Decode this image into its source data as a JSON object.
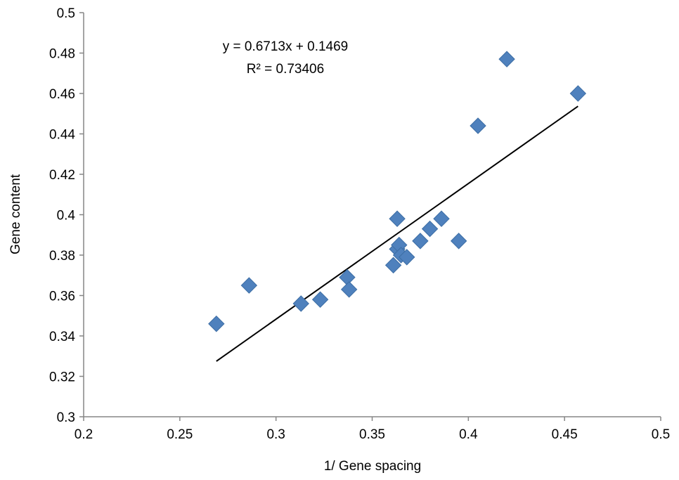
{
  "chart_data": {
    "type": "scatter",
    "xlabel": "1/ Gene spacing",
    "ylabel": "Gene content",
    "xlim": [
      0.2,
      0.5
    ],
    "ylim": [
      0.3,
      0.5
    ],
    "x_ticks": [
      "0.2",
      "0.25",
      "0.3",
      "0.35",
      "0.4",
      "0.45",
      "0.5"
    ],
    "y_ticks": [
      "0.3",
      "0.32",
      "0.34",
      "0.36",
      "0.38",
      "0.4",
      "0.42",
      "0.44",
      "0.46",
      "0.48",
      "0.5"
    ],
    "grid": false,
    "marker_color": "#4F81BD",
    "series": [
      {
        "points": [
          {
            "x": 0.269,
            "y": 0.346
          },
          {
            "x": 0.286,
            "y": 0.365
          },
          {
            "x": 0.313,
            "y": 0.356
          },
          {
            "x": 0.323,
            "y": 0.358
          },
          {
            "x": 0.337,
            "y": 0.369
          },
          {
            "x": 0.338,
            "y": 0.363
          },
          {
            "x": 0.361,
            "y": 0.375
          },
          {
            "x": 0.363,
            "y": 0.383
          },
          {
            "x": 0.363,
            "y": 0.398
          },
          {
            "x": 0.364,
            "y": 0.385
          },
          {
            "x": 0.365,
            "y": 0.38
          },
          {
            "x": 0.368,
            "y": 0.379
          },
          {
            "x": 0.375,
            "y": 0.387
          },
          {
            "x": 0.38,
            "y": 0.393
          },
          {
            "x": 0.386,
            "y": 0.398
          },
          {
            "x": 0.395,
            "y": 0.387
          },
          {
            "x": 0.405,
            "y": 0.444
          },
          {
            "x": 0.42,
            "y": 0.477
          },
          {
            "x": 0.457,
            "y": 0.46
          }
        ]
      }
    ],
    "trendline": {
      "slope": 0.6713,
      "intercept": 0.1469,
      "x_range": [
        0.269,
        0.457
      ],
      "color": "#000000"
    },
    "annotations": {
      "equation": "y = 0.6713x + 0.1469",
      "r_squared": "R² = 0.73406"
    }
  }
}
